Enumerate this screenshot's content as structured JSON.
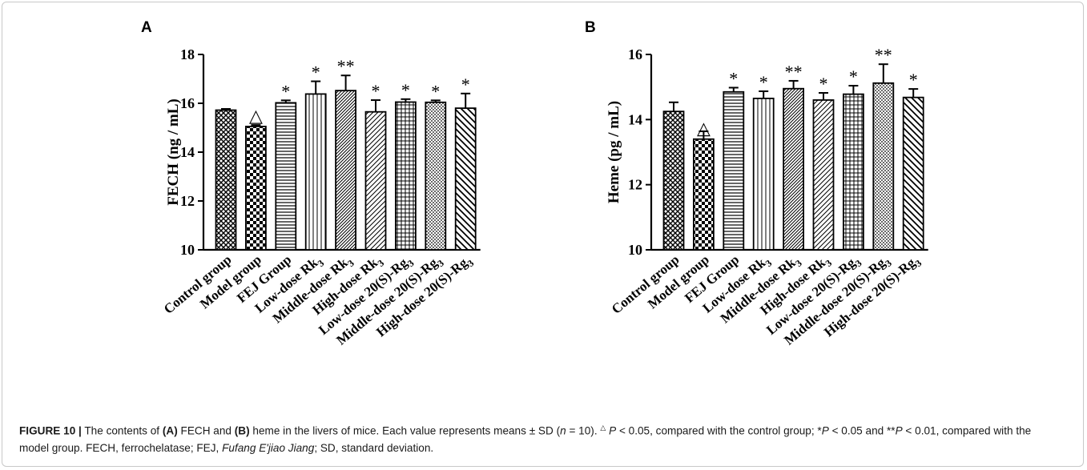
{
  "chart_data": [
    {
      "type": "bar",
      "panel_label": "A",
      "ylabel": "FECH (ng / mL)",
      "ylim": [
        10,
        18
      ],
      "yticks": [
        10,
        12,
        14,
        16,
        18
      ],
      "categories": [
        {
          "text": "Control group",
          "sub": ""
        },
        {
          "text": "Model group",
          "sub": ""
        },
        {
          "text": "FEJ Group",
          "sub": ""
        },
        {
          "text": "Low-dose Rk",
          "sub": "3"
        },
        {
          "text": "Middle-dose Rk",
          "sub": "3"
        },
        {
          "text": "High-dose Rk",
          "sub": "3"
        },
        {
          "text": "Low-dose 20(S)-Rg",
          "sub": "3"
        },
        {
          "text": "Middle-dose 20(S)-Rg",
          "sub": "3"
        },
        {
          "text": "High-dose 20(S)-Rg",
          "sub": "3"
        }
      ],
      "values": [
        15.72,
        15.05,
        16.02,
        16.38,
        16.52,
        15.65,
        16.05,
        16.04,
        15.8
      ],
      "errors": [
        0.05,
        0.06,
        0.1,
        0.52,
        0.62,
        0.48,
        0.12,
        0.08,
        0.6
      ],
      "annotations": [
        "",
        "△",
        "*",
        "*",
        "**",
        "*",
        "*",
        "*",
        "*"
      ],
      "patterns": [
        "crosshatch",
        "checker",
        "hlines",
        "vlines",
        "diagdense",
        "diag",
        "grid",
        "dots",
        "backdiag"
      ]
    },
    {
      "type": "bar",
      "panel_label": "B",
      "ylabel": "Heme (pg / mL)",
      "ylim": [
        10,
        16
      ],
      "yticks": [
        10,
        12,
        14,
        16
      ],
      "categories": [
        {
          "text": "Control group",
          "sub": ""
        },
        {
          "text": "Model group",
          "sub": ""
        },
        {
          "text": "FEJ Group",
          "sub": ""
        },
        {
          "text": "Low-dose Rk",
          "sub": "3"
        },
        {
          "text": "Middle-dose Rk",
          "sub": "3"
        },
        {
          "text": "High-dose Rk",
          "sub": "3"
        },
        {
          "text": "Low-dose 20(S)-Rg",
          "sub": "3"
        },
        {
          "text": "Middle-dose 20(S)-Rg",
          "sub": "3"
        },
        {
          "text": "High-dose 20(S)-Rg",
          "sub": "3"
        }
      ],
      "values": [
        14.25,
        13.4,
        14.85,
        14.65,
        14.95,
        14.6,
        14.78,
        15.12,
        14.68
      ],
      "errors": [
        0.28,
        0.24,
        0.13,
        0.22,
        0.24,
        0.22,
        0.26,
        0.58,
        0.26
      ],
      "annotations": [
        "",
        "△",
        "*",
        "*",
        "**",
        "*",
        "*",
        "**",
        "*"
      ],
      "patterns": [
        "crosshatch",
        "checker",
        "hlines",
        "vlines",
        "diagdense",
        "diag",
        "grid",
        "dots",
        "backdiag"
      ]
    }
  ],
  "caption": {
    "label": "FIGURE 10 |",
    "text_1": " The contents of ",
    "a_label": "(A)",
    "text_2": " FECH and ",
    "b_label": "(B)",
    "text_3": " heme in the livers of mice. Each value represents means ± SD (",
    "n_var": "n",
    "text_4": " = 10). ",
    "delta": "△",
    "p1": "P",
    "text_5": " < 0.05, compared with the control group; *",
    "p2": "P",
    "text_6": " < 0.05 and **",
    "p3": "P",
    "text_7": " < 0.01, compared with the model group. FECH, ferrochelatase; FEJ, ",
    "fej_name": "Fufang E'jiao Jiang",
    "text_8": "; SD, standard deviation."
  }
}
